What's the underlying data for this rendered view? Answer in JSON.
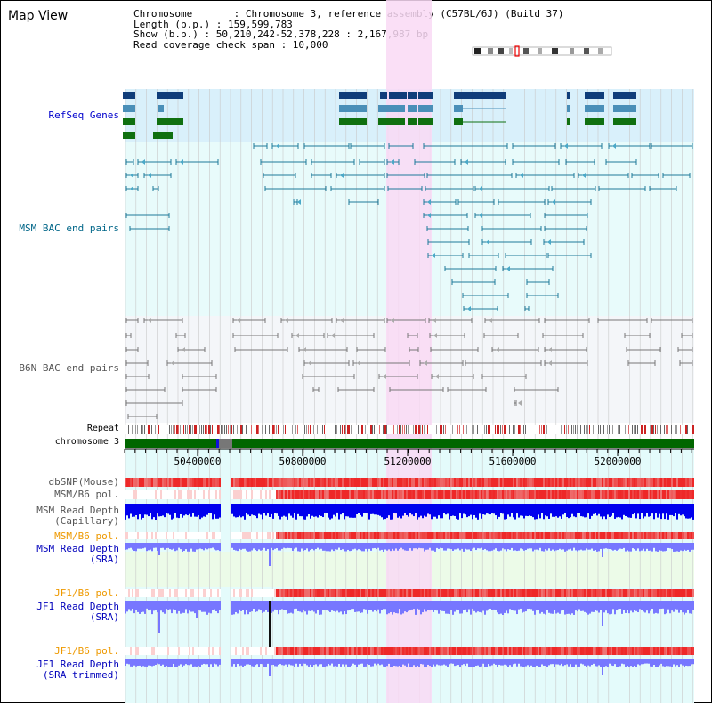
{
  "title": "Map View",
  "info": {
    "chromosome": "Chromosome       : Chromosome 3, reference assembly (C57BL/6J) (Build 37)",
    "length": "Length (b.p.) : 159,599,783",
    "show": "Show (b.p.) : 50,210,242-52,378,228 : 2,167,987 bp",
    "coverage": "Read coverage check span : 10,000"
  },
  "tracks": {
    "refseq": "RefSeq Genes",
    "msm_bac": "MSM BAC end pairs",
    "b6n_bac": "B6N BAC end pairs",
    "repeat": "Repeat",
    "chrom": "chromosome 3",
    "dbsnp": "dbSNP(Mouse)",
    "msm_b6_pol": "MSM/B6 pol.",
    "msm_depth_cap_1": "MSM Read Depth",
    "msm_depth_cap_2": "(Capillary)",
    "msm_b6_pol2": "MSM/B6 pol.",
    "msm_depth_sra_1": "MSM Read Depth",
    "msm_depth_sra_2": "(SRA)",
    "jf1_b6_pol": "JF1/B6 pol.",
    "jf1_depth_sra_1": "JF1 Read Depth",
    "jf1_depth_sra_2": "(SRA)",
    "jf1_b6_pol2": "JF1/B6 pol.",
    "jf1_depth_trim_1": "JF1 Read Depth",
    "jf1_depth_trim_2": "(SRA trimmed)"
  },
  "axis": {
    "ticks": [
      "50400000",
      "50800000",
      "51200000",
      "51600000",
      "52000000"
    ]
  },
  "colors": {
    "refseq_bg": "#d9f0fb",
    "bac_bg": "#e8fbfb",
    "b6n_bg": "#f4f6f9",
    "highlight": "#f9d9f4",
    "chrom": "#006600",
    "depth": "#0000ee",
    "depth_sra": "#7777ff",
    "pol": "#ee3333"
  }
}
